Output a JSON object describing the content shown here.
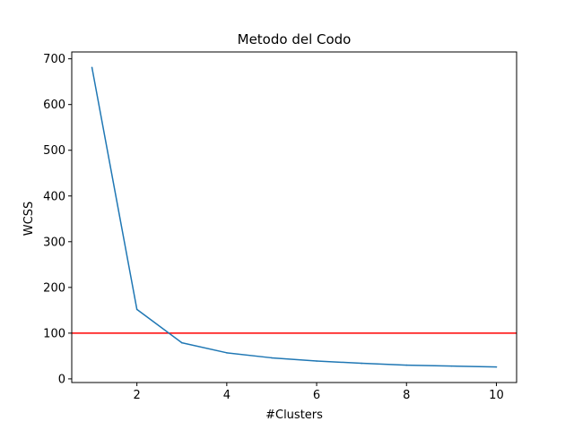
{
  "chart_data": {
    "type": "line",
    "title": "Metodo del Codo",
    "xlabel": "#Clusters",
    "ylabel": "WCSS",
    "xlim": [
      0.55,
      10.45
    ],
    "ylim": [
      -8,
      715
    ],
    "xticks": [
      2,
      4,
      6,
      8,
      10
    ],
    "yticks": [
      0,
      100,
      200,
      300,
      400,
      500,
      600,
      700
    ],
    "grid": false,
    "series": [
      {
        "name": "WCSS",
        "color": "#1f77b4",
        "x": [
          1,
          2,
          3,
          4,
          5,
          6,
          7,
          8,
          9,
          10
        ],
        "values": [
          681,
          152,
          79,
          57,
          46,
          39,
          34,
          30,
          28,
          26
        ]
      }
    ],
    "hlines": [
      {
        "y": 100,
        "color": "#ff0000"
      }
    ]
  }
}
